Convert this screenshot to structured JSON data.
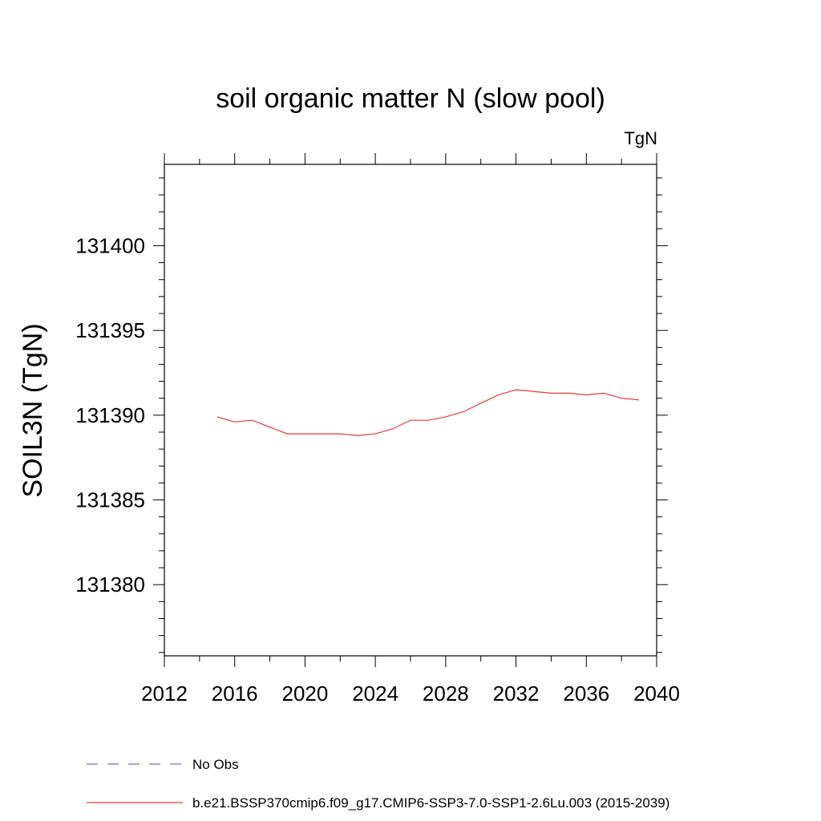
{
  "chart_data": {
    "type": "line",
    "title": "soil organic matter N (slow pool)",
    "units_label": "TgN",
    "ylabel": "SOIL3N  (TgN)",
    "xlabel": "",
    "xlim": [
      2012,
      2040
    ],
    "ylim": [
      131375.8,
      131404.8
    ],
    "x_ticks": [
      2012,
      2016,
      2020,
      2024,
      2028,
      2032,
      2036,
      2040
    ],
    "x_minor_step": 2,
    "y_ticks": [
      131380,
      131385,
      131390,
      131395,
      131400
    ],
    "y_minor_step": 1,
    "grid": false,
    "legend_position": "bottom-left",
    "legend": [
      {
        "label": "No Obs",
        "color": "#7f6fb0",
        "style": "dashed"
      },
      {
        "label": "b.e21.BSSP370cmip6.f09_g17.CMIP6-SSP3-7.0-SSP1-2.6Lu.003 (2015-2039)",
        "color": "#e8373b",
        "style": "solid"
      }
    ],
    "series": [
      {
        "color": "#e8373b",
        "x": [
          2015,
          2016,
          2017,
          2018,
          2019,
          2020,
          2021,
          2022,
          2023,
          2024,
          2025,
          2026,
          2027,
          2028,
          2029,
          2030,
          2031,
          2032,
          2033,
          2034,
          2035,
          2036,
          2037,
          2038,
          2039
        ],
        "values": [
          131389.9,
          131389.6,
          131389.7,
          131389.3,
          131388.9,
          131388.9,
          131388.9,
          131388.9,
          131388.8,
          131388.9,
          131389.2,
          131389.7,
          131389.7,
          131389.9,
          131390.2,
          131390.7,
          131391.2,
          131391.5,
          131391.4,
          131391.3,
          131391.3,
          131391.2,
          131391.3,
          131391.0,
          131390.9
        ]
      }
    ]
  }
}
